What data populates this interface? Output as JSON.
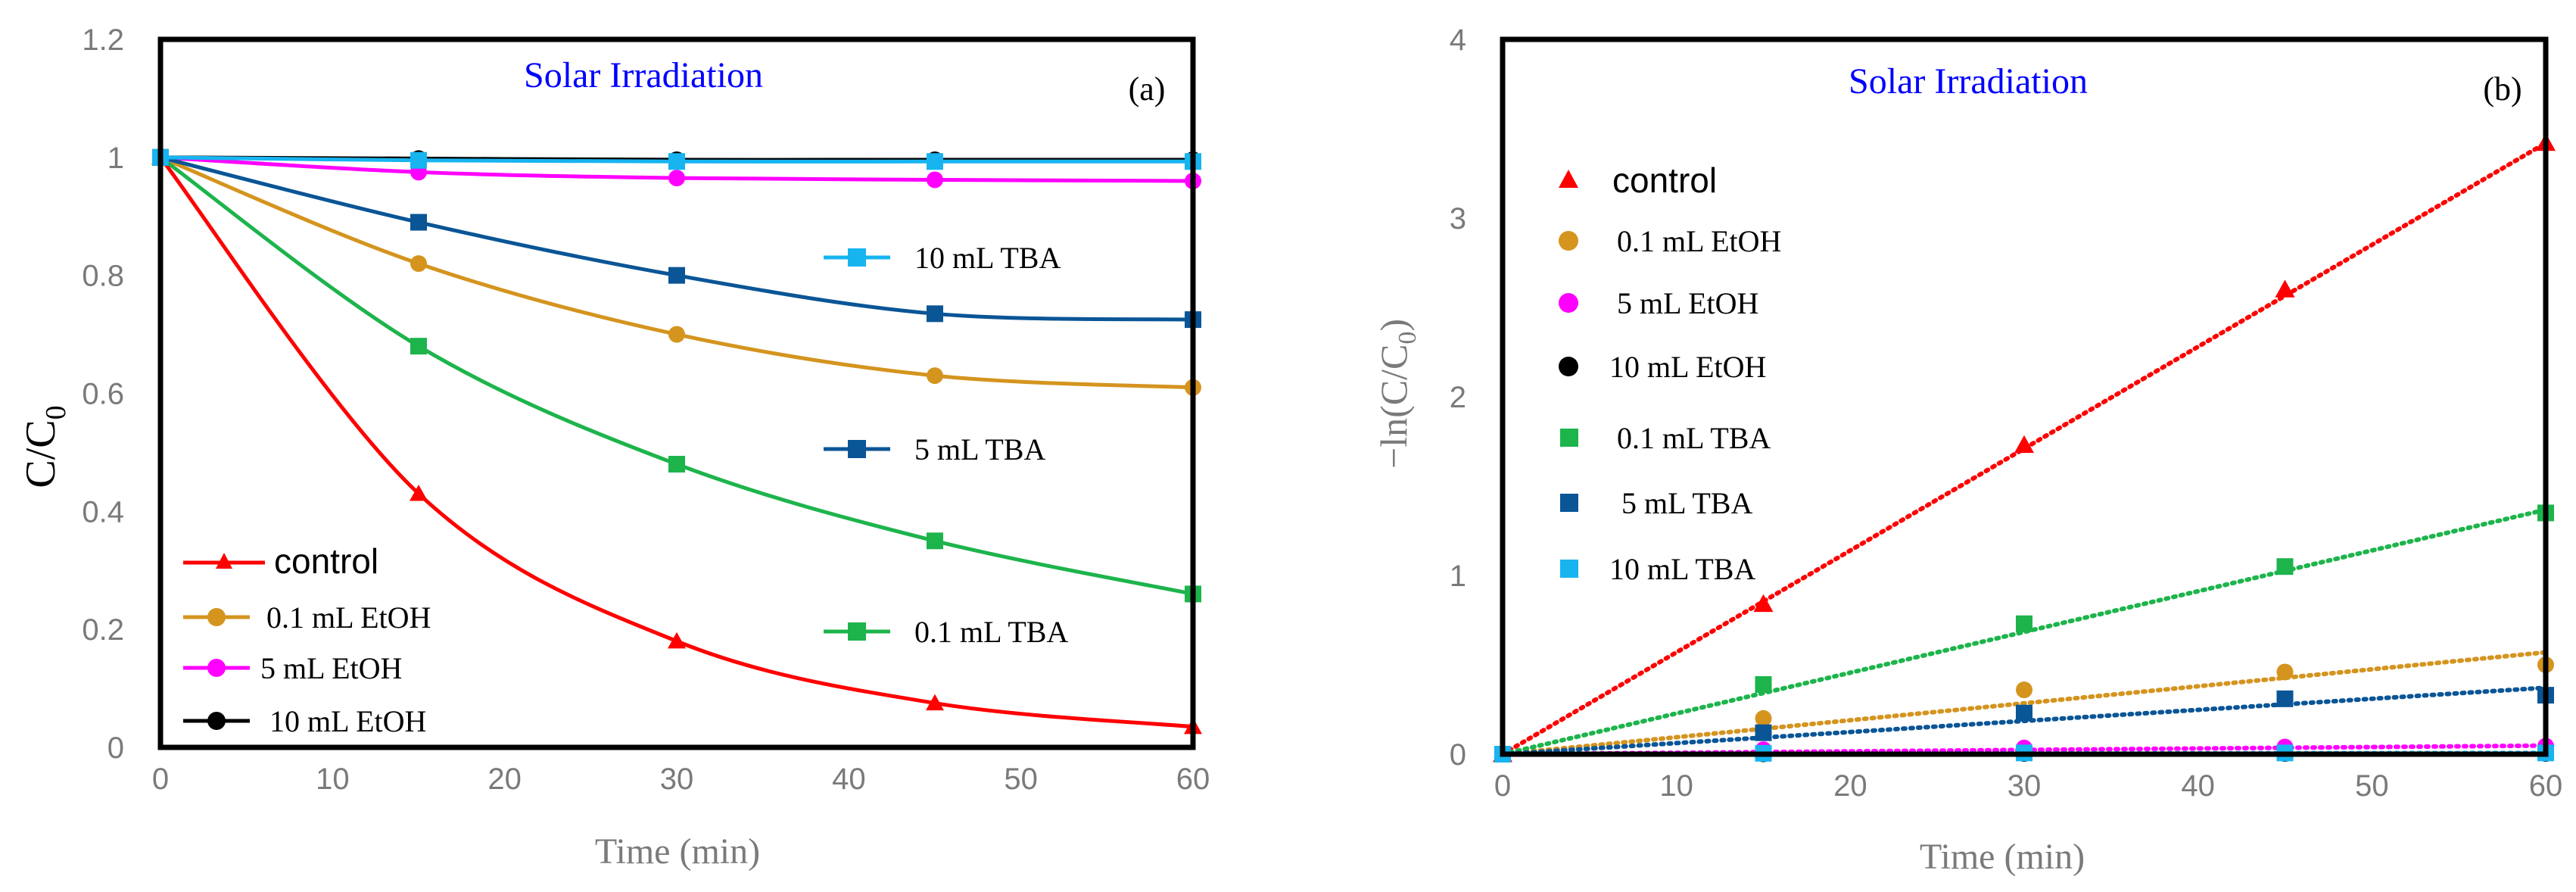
{
  "colors": {
    "control": "#ff0000",
    "etoh_0_1": "#d4941e",
    "etoh_5": "#ff00ff",
    "etoh_10": "#000000",
    "tba_0_1": "#1db44c",
    "tba_5": "#0a5596",
    "tba_10": "#17b4f0",
    "title": "#0000ff"
  },
  "chart_data": [
    {
      "id": "a",
      "type": "line",
      "title": "Solar Irradiation",
      "panel_label": "(a)",
      "xlabel": "Time (min)",
      "ylabel_main": "C/C",
      "ylabel_sub": "0",
      "xlim": [
        0,
        60
      ],
      "ylim": [
        0,
        1.2
      ],
      "xticks": [
        "0",
        "10",
        "20",
        "30",
        "40",
        "50",
        "60"
      ],
      "yticks": [
        "0",
        "0.2",
        "0.4",
        "0.6",
        "0.8",
        "1",
        "1.2"
      ],
      "x": [
        0,
        15,
        30,
        45,
        60
      ],
      "series": [
        {
          "key": "control",
          "name": "control",
          "marker": "triangle",
          "color_key": "control",
          "values": [
            1.0,
            0.43,
            0.18,
            0.075,
            0.035
          ]
        },
        {
          "key": "etoh_0_1",
          "name": "0.1 mL EtOH",
          "marker": "circle",
          "color_key": "etoh_0_1",
          "values": [
            1.0,
            0.82,
            0.7,
            0.63,
            0.61
          ]
        },
        {
          "key": "etoh_5",
          "name": "5 mL EtOH",
          "marker": "circle",
          "color_key": "etoh_5",
          "values": [
            1.0,
            0.975,
            0.965,
            0.962,
            0.96
          ]
        },
        {
          "key": "etoh_10",
          "name": "10 mL EtOH",
          "marker": "circle",
          "color_key": "etoh_10",
          "values": [
            1.0,
            0.998,
            0.996,
            0.996,
            0.996
          ]
        },
        {
          "key": "tba_0_1",
          "name": "0.1 mL TBA",
          "marker": "square",
          "color_key": "tba_0_1",
          "values": [
            1.0,
            0.68,
            0.48,
            0.35,
            0.26
          ]
        },
        {
          "key": "tba_5",
          "name": "5 mL TBA",
          "marker": "square",
          "color_key": "tba_5",
          "values": [
            1.0,
            0.89,
            0.8,
            0.735,
            0.725
          ]
        },
        {
          "key": "tba_10",
          "name": "10 mL TBA",
          "marker": "square",
          "color_key": "tba_10",
          "values": [
            1.0,
            0.995,
            0.993,
            0.993,
            0.993
          ]
        }
      ]
    },
    {
      "id": "b",
      "type": "scatter",
      "title": "Solar Irradiation",
      "panel_label": "(b)",
      "xlabel": "Time (min)",
      "ylabel": "−ln(C/C",
      "ylabel_sub": "0",
      "ylabel_end": ")",
      "xlim": [
        0,
        60
      ],
      "ylim": [
        0,
        4
      ],
      "xticks": [
        "0",
        "10",
        "20",
        "30",
        "40",
        "50",
        "60"
      ],
      "yticks": [
        "0",
        "1",
        "2",
        "3",
        "4"
      ],
      "x": [
        0,
        15,
        30,
        45,
        60
      ],
      "series": [
        {
          "key": "control",
          "name": "control",
          "marker": "triangle",
          "color_key": "control",
          "values": [
            0,
            0.84,
            1.73,
            2.6,
            3.42
          ],
          "trend_slope": 0.057
        },
        {
          "key": "etoh_0_1",
          "name": "0.1 mL EtOH",
          "marker": "circle",
          "color_key": "etoh_0_1",
          "values": [
            0,
            0.2,
            0.36,
            0.46,
            0.5
          ],
          "trend_slope": 0.0095
        },
        {
          "key": "etoh_5",
          "name": "5 mL EtOH",
          "marker": "circle",
          "color_key": "etoh_5",
          "values": [
            0,
            0.025,
            0.035,
            0.04,
            0.045
          ],
          "trend_slope": 0.0008
        },
        {
          "key": "etoh_10",
          "name": "10 mL EtOH",
          "marker": "circle",
          "color_key": "etoh_10",
          "values": [
            0,
            0.002,
            0.004,
            0.004,
            0.004
          ],
          "trend_slope": 7e-05
        },
        {
          "key": "tba_0_1",
          "name": "0.1 mL TBA",
          "marker": "square",
          "color_key": "tba_0_1",
          "values": [
            0,
            0.39,
            0.73,
            1.05,
            1.35
          ],
          "trend_slope": 0.0228
        },
        {
          "key": "tba_5",
          "name": "5 mL TBA",
          "marker": "square",
          "color_key": "tba_5",
          "values": [
            0,
            0.12,
            0.23,
            0.31,
            0.33
          ],
          "trend_slope": 0.0062
        },
        {
          "key": "tba_10",
          "name": "10 mL TBA",
          "marker": "square",
          "color_key": "tba_10",
          "values": [
            0,
            0.005,
            0.007,
            0.007,
            0.007
          ],
          "trend_slope": 0.00012
        }
      ]
    }
  ]
}
